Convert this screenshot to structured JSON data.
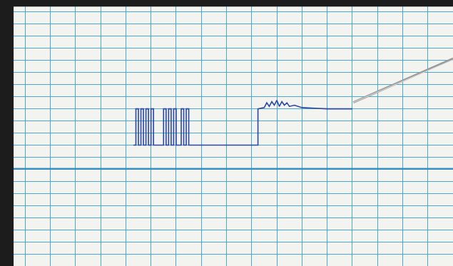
{
  "chart_data": {
    "type": "line",
    "color": "#2b47a6",
    "grid": true,
    "tick_labels": false,
    "xlim": [
      0,
      18
    ],
    "ylim": [
      0,
      22
    ],
    "xticks": [
      0,
      1,
      2,
      3,
      4,
      5,
      6,
      7,
      8,
      9,
      10,
      11,
      12,
      13,
      14,
      15,
      16,
      17,
      18
    ],
    "yticks": [
      0,
      1,
      2,
      3,
      4,
      5,
      6,
      7,
      8,
      9,
      10,
      11,
      12,
      13,
      14,
      15,
      16,
      17,
      18,
      19,
      20,
      21,
      22
    ],
    "x": [
      5.3,
      5.4,
      5.4,
      5.5,
      5.5,
      5.6,
      5.6,
      5.7,
      5.7,
      5.8,
      5.8,
      5.9,
      5.9,
      6.0,
      6.0,
      6.1,
      6.1,
      6.5,
      6.5,
      6.6,
      6.6,
      6.7,
      6.7,
      6.8,
      6.8,
      6.9,
      6.9,
      7.0,
      7.0,
      7.2,
      7.2,
      7.3,
      7.3,
      7.4,
      7.4,
      7.5,
      7.5,
      10.25,
      10.25,
      10.5,
      10.6,
      10.7,
      10.8,
      10.9,
      11.0,
      11.1,
      11.2,
      11.3,
      11.4,
      11.5,
      11.7,
      12.0,
      12.5,
      13.0,
      14.0
    ],
    "values": [
      10,
      10,
      13,
      13,
      10,
      10,
      13,
      13,
      10,
      10,
      13,
      13,
      10,
      10,
      13,
      13,
      10,
      10,
      13,
      13,
      10,
      10,
      13,
      13,
      10,
      10,
      13,
      13,
      10,
      10,
      13,
      13,
      10,
      10,
      13,
      13,
      10,
      10,
      13,
      13.1,
      13.5,
      13.2,
      13.6,
      13.3,
      13.7,
      13.2,
      13.6,
      13.3,
      13.5,
      13.2,
      13.3,
      13.1,
      13.05,
      13,
      13
    ]
  }
}
